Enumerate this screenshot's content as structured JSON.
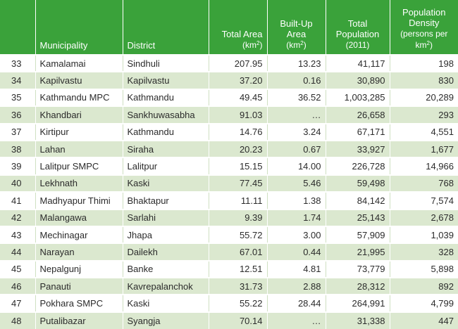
{
  "table": {
    "headers": {
      "number": "",
      "municipality": "Municipality",
      "district": "District",
      "total_area": "Total Area",
      "total_area_unit": "(km",
      "built_up_area_line1": "Built-Up",
      "built_up_area_line2": "Area",
      "built_up_area_unit": "(km",
      "total_population_line1": "Total",
      "total_population_line2": "Population",
      "total_population_unit": "(2011)",
      "density_line1": "Population",
      "density_line2": "Density",
      "density_unit1": "(persons per",
      "density_unit2": "km",
      "superscript": "2",
      "unit_close": ")"
    },
    "rows": [
      {
        "num": "33",
        "municipality": "Kamalamai",
        "district": "Sindhuli",
        "area": "207.95",
        "built_up": "13.23",
        "population": "41,117",
        "density": "198"
      },
      {
        "num": "34",
        "municipality": "Kapilvastu",
        "district": "Kapilvastu",
        "area": "37.20",
        "built_up": "0.16",
        "population": "30,890",
        "density": "830"
      },
      {
        "num": "35",
        "municipality": "Kathmandu MPC",
        "district": "Kathmandu",
        "area": "49.45",
        "built_up": "36.52",
        "population": "1,003,285",
        "density": "20,289"
      },
      {
        "num": "36",
        "municipality": "Khandbari",
        "district": "Sankhuwasabha",
        "area": "91.03",
        "built_up": "…",
        "population": "26,658",
        "density": "293"
      },
      {
        "num": "37",
        "municipality": "Kirtipur",
        "district": "Kathmandu",
        "area": "14.76",
        "built_up": "3.24",
        "population": "67,171",
        "density": "4,551"
      },
      {
        "num": "38",
        "municipality": "Lahan",
        "district": "Siraha",
        "area": "20.23",
        "built_up": "0.67",
        "population": "33,927",
        "density": "1,677"
      },
      {
        "num": "39",
        "municipality": "Lalitpur SMPC",
        "district": "Lalitpur",
        "area": "15.15",
        "built_up": "14.00",
        "population": "226,728",
        "density": "14,966"
      },
      {
        "num": "40",
        "municipality": "Lekhnath",
        "district": "Kaski",
        "area": "77.45",
        "built_up": "5.46",
        "population": "59,498",
        "density": "768"
      },
      {
        "num": "41",
        "municipality": "Madhyapur Thimi",
        "district": "Bhaktapur",
        "area": "11.11",
        "built_up": "1.38",
        "population": "84,142",
        "density": "7,574"
      },
      {
        "num": "42",
        "municipality": "Malangawa",
        "district": "Sarlahi",
        "area": "9.39",
        "built_up": "1.74",
        "population": "25,143",
        "density": "2,678"
      },
      {
        "num": "43",
        "municipality": "Mechinagar",
        "district": "Jhapa",
        "area": "55.72",
        "built_up": "3.00",
        "population": "57,909",
        "density": "1,039"
      },
      {
        "num": "44",
        "municipality": "Narayan",
        "district": "Dailekh",
        "area": "67.01",
        "built_up": "0.44",
        "population": "21,995",
        "density": "328"
      },
      {
        "num": "45",
        "municipality": "Nepalgunj",
        "district": "Banke",
        "area": "12.51",
        "built_up": "4.81",
        "population": "73,779",
        "density": "5,898"
      },
      {
        "num": "46",
        "municipality": "Panauti",
        "district": "Kavrepalanchok",
        "area": "31.73",
        "built_up": "2.88",
        "population": "28,312",
        "density": "892"
      },
      {
        "num": "47",
        "municipality": "Pokhara SMPC",
        "district": "Kaski",
        "area": "55.22",
        "built_up": "28.44",
        "population": "264,991",
        "density": "4,799"
      },
      {
        "num": "48",
        "municipality": "Putalibazar",
        "district": "Syangja",
        "area": "70.14",
        "built_up": "…",
        "population": "31,338",
        "density": "447"
      }
    ]
  }
}
